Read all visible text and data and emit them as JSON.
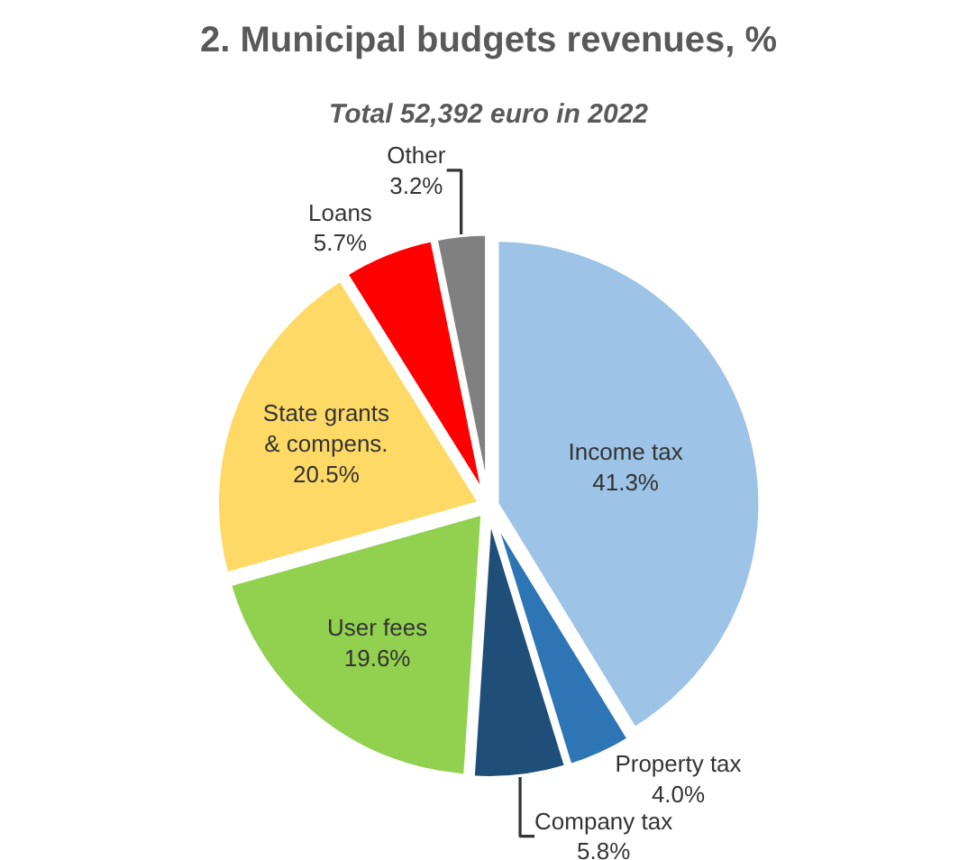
{
  "chart_data": {
    "type": "pie",
    "title": "2. Municipal budgets revenues, %",
    "subtitle": "Total 52,392 euro in 2022",
    "categories": [
      "Income tax",
      "Property tax",
      "Company tax",
      "User fees",
      "State grants\n& compens.",
      "Loans",
      "Other"
    ],
    "values": [
      41.3,
      4.0,
      5.8,
      19.6,
      20.5,
      5.7,
      3.2
    ],
    "value_labels": [
      "41.3%",
      "4.0%",
      "5.8%",
      "19.6%",
      "20.5%",
      "5.7%",
      "3.2%"
    ],
    "colors": [
      "#9dc3e6",
      "#2e75b6",
      "#1f4e79",
      "#92d050",
      "#ffd966",
      "#ff0000",
      "#808080"
    ],
    "legend": false
  }
}
